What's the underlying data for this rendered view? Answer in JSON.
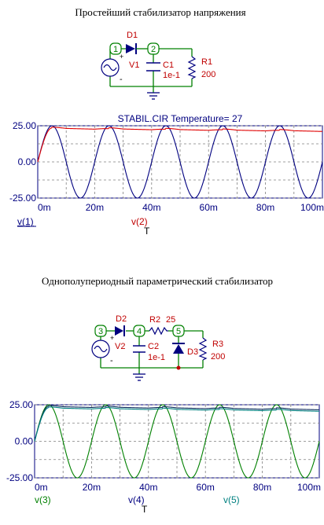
{
  "colors": {
    "wire": "#008000",
    "node": "#008000",
    "label": "#c00000",
    "component": "#000080",
    "red_trace": "#e00000",
    "blue_trace": "#000080",
    "green_trace": "#008000",
    "teal_trace": "#008080",
    "grid": "#808080",
    "axis_text": "#000080"
  },
  "figure1": {
    "title": "Простейший стабилизатор напряжения",
    "schematic": {
      "nodes": [
        "1",
        "2"
      ],
      "diode_label": "D1",
      "source_label": "V1",
      "plus": "+",
      "minus": "-",
      "cap_label": "C1",
      "cap_value": "1e-1",
      "res_label": "R1",
      "res_value": "200"
    },
    "chart_title": "STABIL.CIR Temperature= 27",
    "legend": [
      "v(1)",
      "v(2)"
    ],
    "xaxis_var": "T"
  },
  "figure2": {
    "title": "Однополупериодный параметрический стабилизатор",
    "schematic": {
      "nodes": [
        "3",
        "4",
        "5"
      ],
      "diode_label": "D2",
      "source_label": "V2",
      "plus": "+",
      "minus": "-",
      "cap_label": "C2",
      "cap_value": "1e-1",
      "res_series_label": "R2",
      "res_series_value": "25",
      "zener_label": "D3",
      "res_label": "R3",
      "res_value": "200"
    },
    "legend": [
      "v(3)",
      "v(4)",
      "v(5)"
    ],
    "xaxis_var": "T"
  },
  "chart_data": [
    {
      "type": "line",
      "title": "STABIL.CIR Temperature= 27",
      "xlabel": "T",
      "ylabel": "",
      "xlim": [
        0,
        100
      ],
      "ylim": [
        -25,
        25
      ],
      "x_unit": "m",
      "xticks": [
        "0m",
        "20m",
        "40m",
        "60m",
        "80m",
        "100m"
      ],
      "yticks": [
        "25.00",
        "0.00",
        "-25.00"
      ],
      "grid": true,
      "series": [
        {
          "name": "v(1)",
          "kind": "sine",
          "amplitude": 25,
          "frequency_per_ms": 0.05,
          "color": "blue"
        },
        {
          "name": "v(2)",
          "kind": "rectified",
          "peak": 23.5,
          "end": 21.5,
          "color": "red"
        }
      ]
    },
    {
      "type": "line",
      "title": "",
      "xlabel": "T",
      "ylabel": "",
      "xlim": [
        0,
        100
      ],
      "ylim": [
        -25,
        25
      ],
      "x_unit": "m",
      "xticks": [
        "0m",
        "20m",
        "40m",
        "60m",
        "80m",
        "100m"
      ],
      "yticks": [
        "25.00",
        "0.00",
        "-25.00"
      ],
      "grid": true,
      "series": [
        {
          "name": "v(3)",
          "kind": "sine",
          "amplitude": 25,
          "frequency_per_ms": 0.05,
          "color": "green"
        },
        {
          "name": "v(4)",
          "kind": "rectified",
          "peak": 24,
          "end": 22,
          "color": "navy"
        },
        {
          "name": "v(5)",
          "kind": "rectified",
          "peak": 23,
          "end": 21,
          "color": "teal"
        }
      ]
    }
  ]
}
